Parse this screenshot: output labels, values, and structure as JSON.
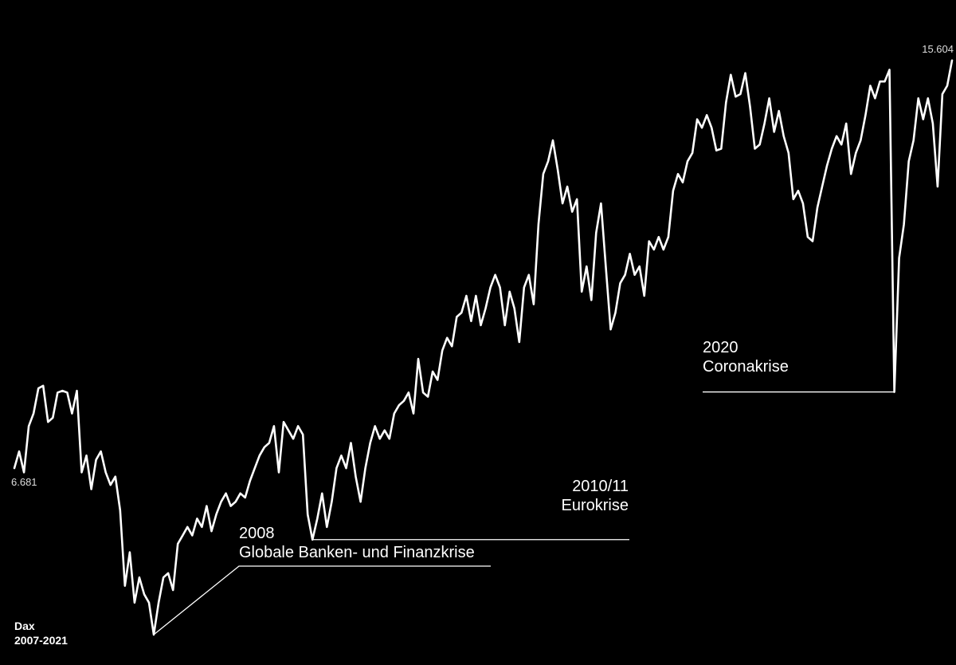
{
  "chart_data": {
    "type": "line",
    "title": "Dax",
    "subtitle": "2007-2021",
    "color": "#ffffff",
    "ylim": [
      3000,
      16500
    ],
    "values": [
      6681,
      7048,
      6588,
      7600,
      7876,
      8428,
      8483,
      7692,
      7784,
      8336,
      8373,
      8336,
      7876,
      8373,
      6588,
      6956,
      6220,
      6864,
      7048,
      6588,
      6312,
      6496,
      5760,
      4104,
      4840,
      3736,
      4288,
      3920,
      3736,
      3037,
      3736,
      4288,
      4380,
      4012,
      5024,
      5208,
      5392,
      5208,
      5576,
      5392,
      5852,
      5300,
      5668,
      5944,
      6128,
      5852,
      5944,
      6128,
      6036,
      6404,
      6680,
      6956,
      7140,
      7232,
      7600,
      6588,
      7692,
      7508,
      7324,
      7600,
      7416,
      5668,
      5116,
      5576,
      6128,
      5392,
      5944,
      6680,
      6956,
      6680,
      7232,
      6496,
      5944,
      6680,
      7232,
      7600,
      7324,
      7508,
      7324,
      7876,
      8060,
      8152,
      8336,
      7876,
      9072,
      8336,
      8244,
      8796,
      8612,
      9256,
      9532,
      9348,
      9992,
      10084,
      10452,
      9900,
      10452,
      9808,
      10176,
      10636,
      10912,
      10636,
      9808,
      10544,
      10176,
      9440,
      10636,
      10912,
      10268,
      12016,
      13120,
      13396,
      13856,
      13212,
      12476,
      12844,
      12292,
      12568,
      10544,
      11096,
      10360,
      11832,
      12476,
      11096,
      9716,
      10084,
      10728,
      10912,
      11372,
      10912,
      11096,
      10452,
      11648,
      11464,
      11740,
      11464,
      11740,
      12752,
      13120,
      12936,
      13396,
      13580,
      14316,
      14132,
      14408,
      14132,
      13635,
      13672,
      14684,
      15291,
      14813,
      14868,
      15328,
      14592,
      13672,
      13764,
      14224,
      14776,
      14040,
      14500,
      13948,
      13580,
      12568,
      12752,
      12476,
      11740,
      11648,
      12384,
      12844,
      13304,
      13672,
      13948,
      13764,
      14224,
      13120,
      13580,
      13856,
      14408,
      15052,
      14776,
      15144,
      15144,
      15400,
      8348,
      11280,
      12016,
      13396,
      13856,
      14776,
      14316,
      14776,
      14224,
      12844,
      14868,
      15052,
      15604
    ],
    "value_labels": [
      "6.681",
      null,
      null,
      null,
      null,
      null,
      null,
      null,
      null,
      null,
      null,
      null,
      null,
      null,
      null,
      null,
      null,
      null,
      null,
      null,
      null,
      null,
      null,
      null,
      null,
      null,
      null,
      null,
      null,
      null,
      null,
      null,
      null,
      null,
      null,
      null,
      null,
      null,
      null,
      null,
      null,
      null,
      null,
      null,
      null,
      null,
      null,
      null,
      null,
      null,
      null,
      null,
      null,
      null,
      null,
      null,
      null,
      null,
      null,
      null,
      null,
      null,
      null,
      null,
      null,
      null,
      null,
      null,
      null,
      null,
      null,
      null,
      null,
      null,
      null,
      null,
      null,
      null,
      null,
      null,
      null,
      null,
      null,
      null,
      null,
      null,
      null,
      null,
      null,
      null,
      null,
      null,
      null,
      null,
      null,
      null,
      null,
      null,
      null,
      null,
      null,
      null,
      null,
      null,
      null,
      null,
      null,
      null,
      null,
      null,
      null,
      null,
      null,
      null,
      null,
      null,
      null,
      null,
      null,
      null,
      null,
      null,
      null,
      null,
      null,
      null,
      null,
      null,
      null,
      null,
      null,
      null,
      null,
      null,
      null,
      null,
      null,
      null,
      null,
      null,
      null,
      null,
      null,
      null,
      null,
      null,
      null,
      null,
      null,
      null,
      null,
      null,
      null,
      null,
      null,
      null,
      null,
      null,
      null,
      null,
      null,
      null,
      null,
      null,
      null,
      null,
      null,
      null,
      null,
      null,
      null,
      null,
      null,
      null,
      null,
      null,
      null,
      null,
      null,
      null,
      null,
      null,
      null,
      null,
      null,
      null,
      null,
      null,
      null,
      null,
      null,
      null,
      null,
      null,
      null,
      "15.604"
    ],
    "annotations": [
      {
        "title": "2008",
        "text": "Globale Banken- und Finanzkrise"
      },
      {
        "title": "2010/11",
        "text": "Eurokrise"
      },
      {
        "title": "2020",
        "text": "Coronakrise"
      }
    ]
  }
}
